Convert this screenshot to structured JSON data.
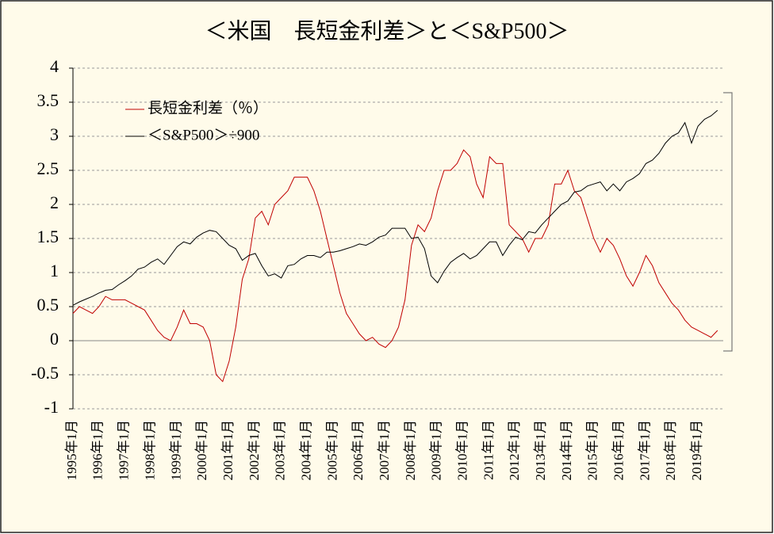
{
  "chart_data": {
    "type": "line",
    "title": "＜米国　長短金利差＞と＜S&P500＞",
    "categories": [
      "1995年1月",
      null,
      null,
      null,
      "1996年1月",
      null,
      null,
      null,
      "1997年1月",
      null,
      null,
      null,
      "1998年1月",
      null,
      null,
      null,
      "1999年1月",
      null,
      null,
      null,
      "2000年1月",
      null,
      null,
      null,
      "2001年1月",
      null,
      null,
      null,
      "2002年1月",
      null,
      null,
      null,
      "2003年1月",
      null,
      null,
      null,
      "2004年1月",
      null,
      null,
      null,
      "2005年1月",
      null,
      null,
      null,
      "2006年1月",
      null,
      null,
      null,
      "2007年1月",
      null,
      null,
      null,
      "2008年1月",
      null,
      null,
      null,
      "2009年1月",
      null,
      null,
      null,
      "2010年1月",
      null,
      null,
      null,
      "2011年1月",
      null,
      null,
      null,
      "2012年1月",
      null,
      null,
      null,
      "2013年1月",
      null,
      null,
      null,
      "2014年1月",
      null,
      null,
      null,
      "2015年1月",
      null,
      null,
      null,
      "2016年1月",
      null,
      null,
      null,
      "2017年1月",
      null,
      null,
      null,
      "2018年1月",
      null,
      null,
      null,
      "2019年1月",
      null,
      null,
      null
    ],
    "series": [
      {
        "name": "長短金利差（％）",
        "color": "#c00000",
        "values": [
          0.4,
          0.5,
          0.45,
          0.4,
          0.5,
          0.65,
          0.6,
          0.6,
          0.6,
          0.55,
          0.5,
          0.45,
          0.3,
          0.15,
          0.05,
          0.0,
          0.2,
          0.45,
          0.25,
          0.25,
          0.2,
          0.0,
          -0.5,
          -0.6,
          -0.3,
          0.2,
          0.9,
          1.2,
          1.8,
          1.9,
          1.7,
          2.0,
          2.1,
          2.2,
          2.4,
          2.4,
          2.4,
          2.2,
          1.9,
          1.5,
          1.1,
          0.7,
          0.4,
          0.25,
          0.1,
          0.0,
          0.05,
          -0.05,
          -0.1,
          0.0,
          0.2,
          0.6,
          1.4,
          1.7,
          1.6,
          1.8,
          2.2,
          2.5,
          2.5,
          2.6,
          2.8,
          2.7,
          2.3,
          2.1,
          2.7,
          2.6,
          2.6,
          1.7,
          1.6,
          1.5,
          1.3,
          1.5,
          1.5,
          1.7,
          2.3,
          2.3,
          2.5,
          2.2,
          2.1,
          1.8,
          1.5,
          1.3,
          1.5,
          1.4,
          1.2,
          0.95,
          0.8,
          1.0,
          1.25,
          1.1,
          0.85,
          0.7,
          0.55,
          0.45,
          0.3,
          0.2,
          0.15,
          0.1,
          0.05,
          0.15
        ]
      },
      {
        "name": "＜S&P500＞÷900",
        "color": "#000000",
        "values": [
          0.52,
          0.57,
          0.61,
          0.65,
          0.7,
          0.74,
          0.75,
          0.82,
          0.88,
          0.95,
          1.05,
          1.08,
          1.15,
          1.2,
          1.12,
          1.25,
          1.38,
          1.45,
          1.42,
          1.52,
          1.58,
          1.62,
          1.6,
          1.5,
          1.4,
          1.35,
          1.18,
          1.25,
          1.28,
          1.1,
          0.95,
          0.98,
          0.92,
          1.1,
          1.12,
          1.2,
          1.25,
          1.25,
          1.22,
          1.3,
          1.3,
          1.32,
          1.35,
          1.38,
          1.42,
          1.4,
          1.45,
          1.52,
          1.55,
          1.65,
          1.65,
          1.65,
          1.5,
          1.52,
          1.35,
          0.95,
          0.85,
          1.02,
          1.15,
          1.22,
          1.28,
          1.2,
          1.25,
          1.35,
          1.45,
          1.45,
          1.25,
          1.4,
          1.52,
          1.48,
          1.6,
          1.58,
          1.7,
          1.8,
          1.9,
          2.0,
          2.05,
          2.18,
          2.2,
          2.27,
          2.3,
          2.33,
          2.2,
          2.3,
          2.2,
          2.33,
          2.38,
          2.45,
          2.6,
          2.65,
          2.75,
          2.9,
          3.0,
          3.05,
          3.2,
          2.9,
          3.15,
          3.25,
          3.3,
          3.38
        ]
      }
    ],
    "ylim": [
      -1,
      4
    ],
    "yticks": [
      -1,
      -0.5,
      0,
      0.5,
      1,
      1.5,
      2,
      2.5,
      3,
      3.5,
      4
    ],
    "grid": true
  }
}
